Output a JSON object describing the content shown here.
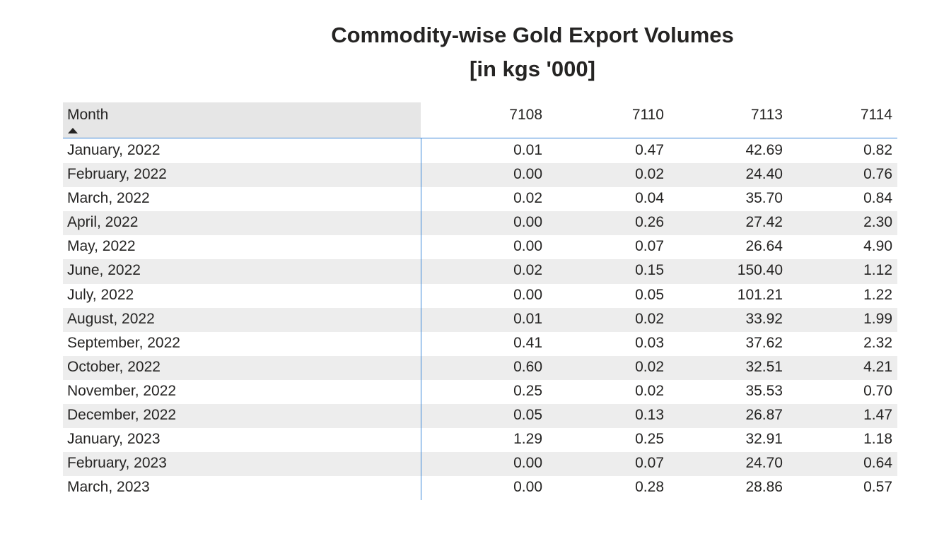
{
  "title_line1": "Commodity-wise Gold Export Volumes",
  "title_line2": "[in kgs '000]",
  "accent_color": "#3a86d8",
  "chart_data": {
    "type": "table",
    "title": "Commodity-wise Gold Export Volumes [in kgs '000]",
    "columns": [
      "Month",
      "7108",
      "7110",
      "7113",
      "7114"
    ],
    "sort": {
      "column": "Month",
      "direction": "ascending"
    },
    "rows": [
      [
        "January, 2022",
        "0.01",
        "0.47",
        "42.69",
        "0.82"
      ],
      [
        "February, 2022",
        "0.00",
        "0.02",
        "24.40",
        "0.76"
      ],
      [
        "March, 2022",
        "0.02",
        "0.04",
        "35.70",
        "0.84"
      ],
      [
        "April, 2022",
        "0.00",
        "0.26",
        "27.42",
        "2.30"
      ],
      [
        "May, 2022",
        "0.00",
        "0.07",
        "26.64",
        "4.90"
      ],
      [
        "June, 2022",
        "0.02",
        "0.15",
        "150.40",
        "1.12"
      ],
      [
        "July, 2022",
        "0.00",
        "0.05",
        "101.21",
        "1.22"
      ],
      [
        "August, 2022",
        "0.01",
        "0.02",
        "33.92",
        "1.99"
      ],
      [
        "September, 2022",
        "0.41",
        "0.03",
        "37.62",
        "2.32"
      ],
      [
        "October, 2022",
        "0.60",
        "0.02",
        "32.51",
        "4.21"
      ],
      [
        "November, 2022",
        "0.25",
        "0.02",
        "35.53",
        "0.70"
      ],
      [
        "December, 2022",
        "0.05",
        "0.13",
        "26.87",
        "1.47"
      ],
      [
        "January, 2023",
        "1.29",
        "0.25",
        "32.91",
        "1.18"
      ],
      [
        "February, 2023",
        "0.00",
        "0.07",
        "24.70",
        "0.64"
      ],
      [
        "March, 2023",
        "0.00",
        "0.28",
        "28.86",
        "0.57"
      ]
    ]
  }
}
